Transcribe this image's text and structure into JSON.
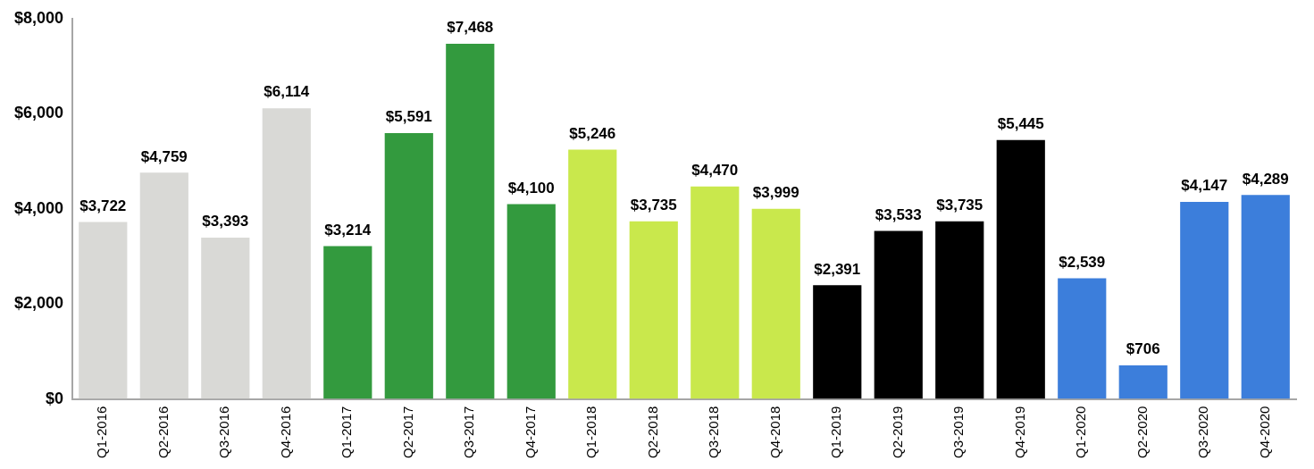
{
  "chart_data": {
    "type": "bar",
    "categories": [
      "Q1-2016",
      "Q2-2016",
      "Q3-2016",
      "Q4-2016",
      "Q1-2017",
      "Q2-2017",
      "Q3-2017",
      "Q4-2017",
      "Q1-2018",
      "Q2-2018",
      "Q3-2018",
      "Q4-2018",
      "Q1-2019",
      "Q2-2019",
      "Q3-2019",
      "Q4-2019",
      "Q1-2020",
      "Q2-2020",
      "Q3-2020",
      "Q4-2020"
    ],
    "values": [
      3722,
      4759,
      3393,
      6114,
      3214,
      5591,
      7468,
      4100,
      5246,
      3735,
      4470,
      3999,
      2391,
      3533,
      3735,
      5445,
      2539,
      706,
      4147,
      4289
    ],
    "value_labels": [
      "$3,722",
      "$4,759",
      "$3,393",
      "$6,114",
      "$3,214",
      "$5,591",
      "$7,468",
      "$4,100",
      "$5,246",
      "$3,735",
      "$4,470",
      "$3,999",
      "$2,391",
      "$3,533",
      "$3,735",
      "$5,445",
      "$2,539",
      "$706",
      "$4,147",
      "$4,289"
    ],
    "colors": [
      "#d9d9d6",
      "#d9d9d6",
      "#d9d9d6",
      "#d9d9d6",
      "#339a3e",
      "#339a3e",
      "#339a3e",
      "#339a3e",
      "#c9e84c",
      "#c9e84c",
      "#c9e84c",
      "#c9e84c",
      "#000000",
      "#000000",
      "#000000",
      "#000000",
      "#3c7edb",
      "#3c7edb",
      "#3c7edb",
      "#3c7edb"
    ],
    "ylim": [
      0,
      8000
    ],
    "yticks": [
      {
        "value": 0,
        "label": "$0"
      },
      {
        "value": 2000,
        "label": "$2,000"
      },
      {
        "value": 4000,
        "label": "$4,000"
      },
      {
        "value": 6000,
        "label": "$6,000"
      },
      {
        "value": 8000,
        "label": "$8,000"
      }
    ],
    "grid": false,
    "data_labels": true
  }
}
